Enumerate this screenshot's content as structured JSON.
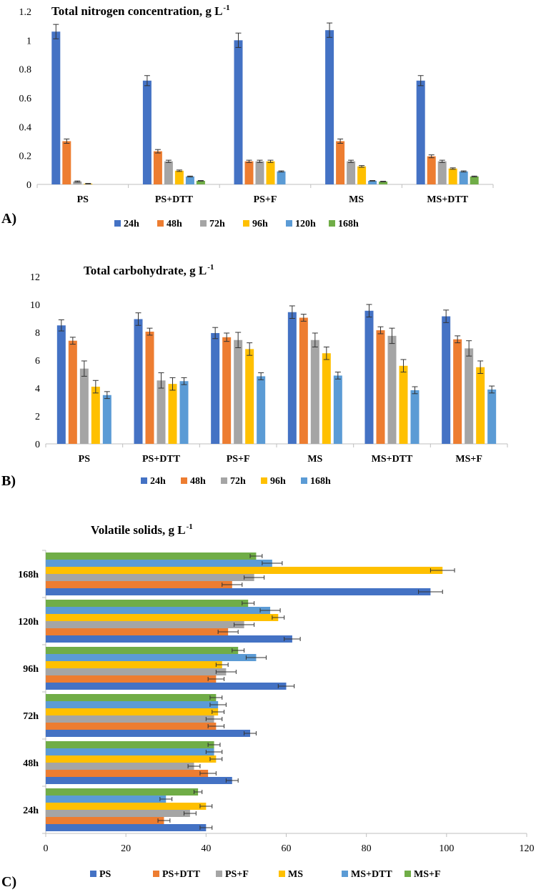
{
  "chart_data": [
    {
      "id": "A",
      "type": "bar",
      "panel_label": "A)",
      "title": "Total nitrogen concentration, g L",
      "title_sup": "-1",
      "categories": [
        "PS",
        "PS+DTT",
        "PS+F",
        "MS",
        "MS+DTT"
      ],
      "ylim": [
        0,
        1.2
      ],
      "yticks": [
        "0",
        "0.2",
        "0.4",
        "0.6",
        "0.8",
        "1",
        "1.2"
      ],
      "grid": false,
      "series": [
        {
          "name": "24h",
          "color": "#4472C4",
          "values": [
            1.06,
            0.72,
            1.0,
            1.07,
            0.72
          ],
          "errors": [
            0.05,
            0.035,
            0.05,
            0.05,
            0.035
          ]
        },
        {
          "name": "48h",
          "color": "#ED7D31",
          "values": [
            0.3,
            0.23,
            0.16,
            0.3,
            0.195
          ],
          "errors": [
            0.015,
            0.012,
            0.008,
            0.015,
            0.01
          ]
        },
        {
          "name": "72h",
          "color": "#A5A5A5",
          "values": [
            0.02,
            0.16,
            0.16,
            0.16,
            0.16
          ],
          "errors": [
            0.004,
            0.008,
            0.008,
            0.008,
            0.008
          ]
        },
        {
          "name": "96h",
          "color": "#FFC000",
          "values": [
            0.005,
            0.095,
            0.16,
            0.125,
            0.11
          ],
          "errors": [
            0.002,
            0.005,
            0.008,
            0.006,
            0.005
          ]
        },
        {
          "name": "120h",
          "color": "#5B9BD5",
          "values": [
            0,
            0.055,
            0.09,
            0.025,
            0.09
          ],
          "errors": [
            0,
            0.003,
            0.004,
            0.002,
            0.004
          ]
        },
        {
          "name": "168h",
          "color": "#70AD47",
          "values": [
            0,
            0.025,
            0,
            0.02,
            0.055
          ],
          "errors": [
            0,
            0.002,
            0,
            0.002,
            0.003
          ]
        }
      ]
    },
    {
      "id": "B",
      "type": "bar",
      "panel_label": "B)",
      "title": "Total carbohydrate, g L",
      "title_sup": " -1",
      "categories": [
        "PS",
        "PS+DTT",
        "PS+F",
        "MS",
        "MS+DTT",
        "MS+F"
      ],
      "ylim": [
        0,
        12
      ],
      "yticks": [
        "0",
        "2",
        "4",
        "6",
        "8",
        "10",
        "12"
      ],
      "grid": false,
      "series": [
        {
          "name": "24h",
          "color": "#4472C4",
          "values": [
            8.5,
            8.95,
            7.95,
            9.45,
            9.55,
            9.15
          ],
          "errors": [
            0.4,
            0.45,
            0.4,
            0.45,
            0.45,
            0.45
          ]
        },
        {
          "name": "48h",
          "color": "#ED7D31",
          "values": [
            7.4,
            8.05,
            7.65,
            9.05,
            8.15,
            7.5
          ],
          "errors": [
            0.25,
            0.25,
            0.3,
            0.25,
            0.25,
            0.25
          ]
        },
        {
          "name": "72h",
          "color": "#A5A5A5",
          "values": [
            5.4,
            4.55,
            7.45,
            7.45,
            7.75,
            6.85
          ],
          "errors": [
            0.55,
            0.55,
            0.55,
            0.5,
            0.55,
            0.55
          ]
        },
        {
          "name": "96h",
          "color": "#FFC000",
          "values": [
            4.1,
            4.3,
            6.8,
            6.5,
            5.6,
            5.5
          ],
          "errors": [
            0.45,
            0.45,
            0.45,
            0.45,
            0.45,
            0.45
          ]
        },
        {
          "name": "168h",
          "color": "#5B9BD5",
          "values": [
            3.5,
            4.5,
            4.85,
            4.9,
            3.85,
            3.9
          ],
          "errors": [
            0.25,
            0.25,
            0.25,
            0.25,
            0.25,
            0.25
          ]
        }
      ]
    },
    {
      "id": "C",
      "type": "bar",
      "orientation": "horizontal",
      "panel_label": "C)",
      "title": "Volatile solids, g L",
      "title_sup": "-1",
      "categories": [
        "24h",
        "48h",
        "72h",
        "96h",
        "120h",
        "168h"
      ],
      "xlim": [
        0,
        120
      ],
      "xticks": [
        "0",
        "20",
        "40",
        "60",
        "80",
        "100",
        "120"
      ],
      "grid": false,
      "series": [
        {
          "name": "PS",
          "color": "#4472C4",
          "values": [
            40,
            46.5,
            51,
            60,
            61.5,
            96
          ],
          "errors": [
            1.5,
            1.5,
            1.5,
            2,
            2,
            3
          ]
        },
        {
          "name": "PS+DTT",
          "color": "#ED7D31",
          "values": [
            29.5,
            40.5,
            42.5,
            42.5,
            45.5,
            46.5
          ],
          "errors": [
            1.5,
            2,
            2,
            2,
            2.5,
            2.5
          ]
        },
        {
          "name": "PS+F",
          "color": "#A5A5A5",
          "values": [
            36,
            37,
            42,
            45,
            49.5,
            52
          ],
          "errors": [
            1.5,
            1.5,
            2,
            2.5,
            2.5,
            2.5
          ]
        },
        {
          "name": "MS",
          "color": "#FFC000",
          "values": [
            40,
            42.5,
            43,
            44,
            58,
            99
          ],
          "errors": [
            1.5,
            1.5,
            1.5,
            1.5,
            1.5,
            3
          ]
        },
        {
          "name": "MS+DTT",
          "color": "#5B9BD5",
          "values": [
            30,
            42,
            43,
            52.5,
            56,
            56.5
          ],
          "errors": [
            1.5,
            2,
            2,
            2.5,
            2.5,
            2.5
          ]
        },
        {
          "name": "MS+F",
          "color": "#70AD47",
          "values": [
            38,
            42,
            42.5,
            48,
            50.5,
            52.5
          ],
          "errors": [
            1,
            1.5,
            1.5,
            1.5,
            1.5,
            1.5
          ]
        }
      ]
    }
  ]
}
